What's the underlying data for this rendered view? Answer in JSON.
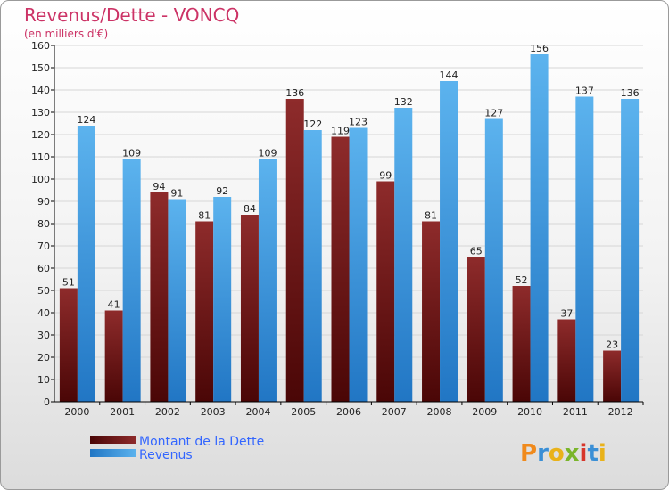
{
  "chart_data": {
    "type": "bar",
    "title": "Revenus/Dette - VONCQ",
    "subtitle": "(en milliers d'€)",
    "categories": [
      "2000",
      "2001",
      "2002",
      "2003",
      "2004",
      "2005",
      "2006",
      "2007",
      "2008",
      "2009",
      "2010",
      "2011",
      "2012"
    ],
    "series": [
      {
        "name": "Montant de la Dette",
        "color": "#7a1515",
        "values": [
          51,
          41,
          94,
          81,
          84,
          136,
          119,
          99,
          81,
          65,
          52,
          37,
          23
        ]
      },
      {
        "name": "Revenus",
        "color": "#3399e6",
        "values": [
          124,
          109,
          91,
          92,
          109,
          122,
          123,
          132,
          144,
          127,
          156,
          137,
          136
        ]
      }
    ],
    "ylim": [
      0,
      160
    ],
    "ytick_step": 10,
    "yticks": [
      "0",
      "10",
      "20",
      "30",
      "40",
      "50",
      "60",
      "70",
      "80",
      "90",
      "100",
      "110",
      "120",
      "130",
      "140",
      "150",
      "160"
    ],
    "grid": true,
    "legend_position": "bottom-left"
  },
  "brand": {
    "logo_text": "Proxiti"
  }
}
